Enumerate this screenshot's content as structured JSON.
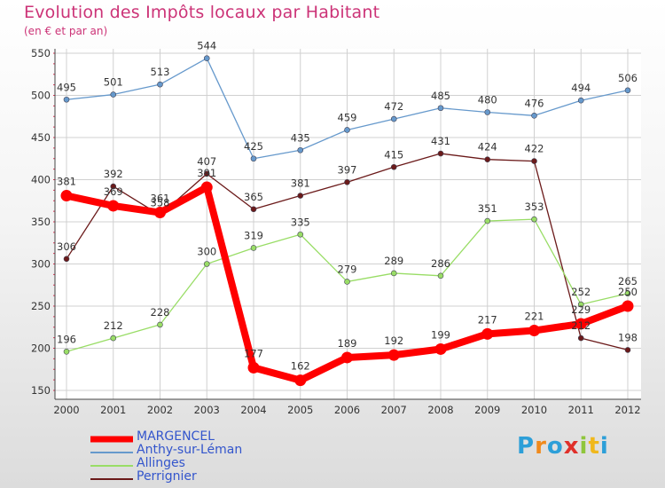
{
  "header": {
    "title": "Evolution des Impôts locaux par Habitant",
    "subtitle": "(en € et par an)"
  },
  "logo": {
    "letters": [
      "P",
      "r",
      "o",
      "x",
      "i",
      "t",
      "i"
    ],
    "colors": [
      "#2d9fd8",
      "#f08a1c",
      "#2d9fd8",
      "#e0302a",
      "#8fc63c",
      "#f0b81c",
      "#2d9fd8"
    ]
  },
  "chart_data": {
    "type": "line",
    "title": "Evolution des Impôts locaux par Habitant",
    "subtitle": "(en € et par an)",
    "xlabel": "",
    "ylabel": "",
    "ylim": [
      150,
      550
    ],
    "yticks": [
      150,
      200,
      250,
      300,
      350,
      400,
      450,
      500,
      550
    ],
    "categories": [
      "2000",
      "2001",
      "2002",
      "2003",
      "2004",
      "2005",
      "2006",
      "2007",
      "2008",
      "2009",
      "2010",
      "2011",
      "2012"
    ],
    "series": [
      {
        "name": "Perrignier",
        "color": "#6b1a1a",
        "width": 1.3,
        "marker": 3,
        "values": [
          306,
          392,
          358,
          407,
          365,
          381,
          397,
          415,
          431,
          424,
          422,
          212,
          198
        ]
      },
      {
        "name": "Allinges",
        "color": "#99dd66",
        "width": 1.3,
        "marker": 3,
        "values": [
          196,
          212,
          228,
          300,
          319,
          335,
          279,
          289,
          286,
          351,
          353,
          252,
          265
        ]
      },
      {
        "name": "Anthy-sur-Léman",
        "color": "#6699cc",
        "width": 1.3,
        "marker": 3,
        "values": [
          495,
          501,
          513,
          544,
          425,
          435,
          459,
          472,
          485,
          480,
          476,
          494,
          506
        ]
      },
      {
        "name": "MARGENCEL",
        "color": "#ff0000",
        "width": 8,
        "marker": 6.5,
        "values": [
          381,
          369,
          361,
          391,
          177,
          162,
          189,
          192,
          199,
          217,
          221,
          229,
          250
        ]
      }
    ],
    "legend": [
      "MARGENCEL",
      "Anthy-sur-Léman",
      "Allinges",
      "Perrignier"
    ],
    "legend_position": "bottom-left"
  }
}
